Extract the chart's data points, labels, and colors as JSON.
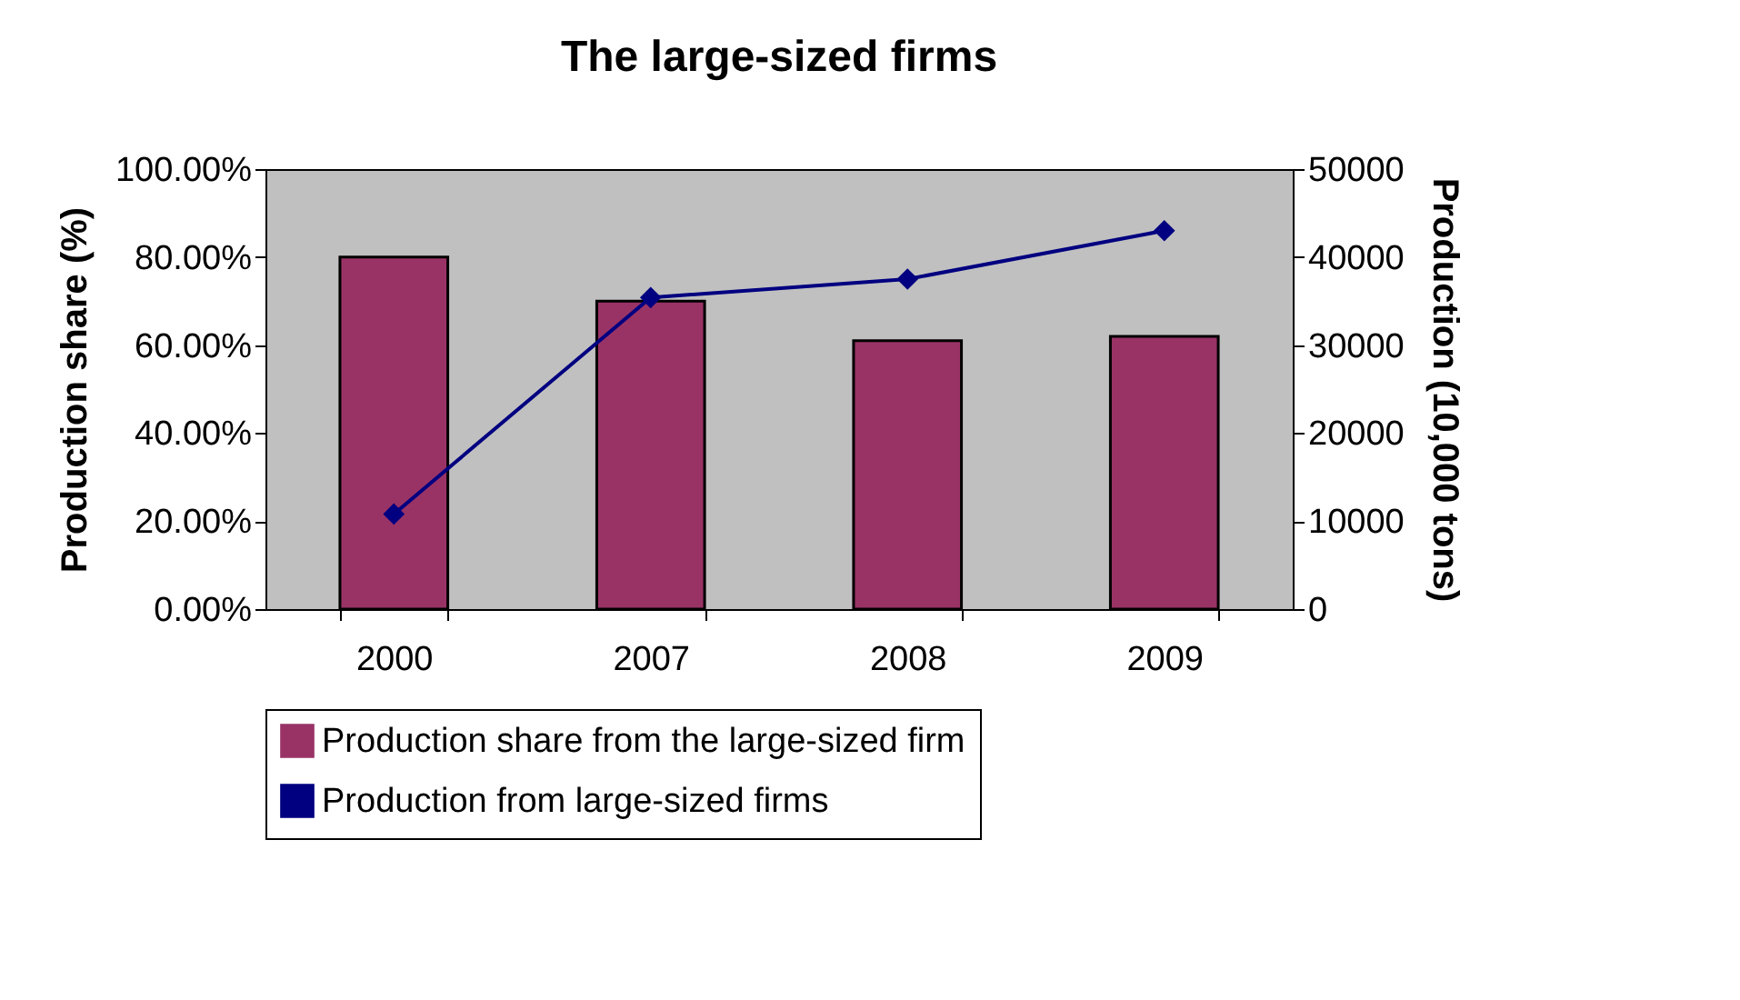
{
  "chart_data": {
    "type": "bar",
    "title": "The large-sized firms",
    "ylabel": "Production share (%)",
    "y2label": "Production (10,000 tons)",
    "categories": [
      "2000",
      "2007",
      "2008",
      "2009"
    ],
    "series": [
      {
        "name": "Production share from the large-sized firm",
        "color": "#993366",
        "values": [
          80,
          70,
          61,
          62
        ]
      },
      {
        "name": "Production from large-sized firms",
        "type": "line",
        "axis": "y2",
        "color": "#000080",
        "values": [
          10800,
          35400,
          37500,
          43000
        ]
      }
    ],
    "ylim": [
      0,
      100
    ],
    "yticks": [
      {
        "value": 0,
        "label": "0.00%"
      },
      {
        "value": 20,
        "label": "20.00%"
      },
      {
        "value": 40,
        "label": "40.00%"
      },
      {
        "value": 60,
        "label": "60.00%"
      },
      {
        "value": 80,
        "label": "80.00%"
      },
      {
        "value": 100,
        "label": "100.00%"
      }
    ],
    "y2lim": [
      0,
      50000
    ],
    "y2ticks": [
      0,
      10000,
      20000,
      30000,
      40000,
      50000
    ],
    "marker": "diamond",
    "legend": "bottom",
    "grid": false
  }
}
